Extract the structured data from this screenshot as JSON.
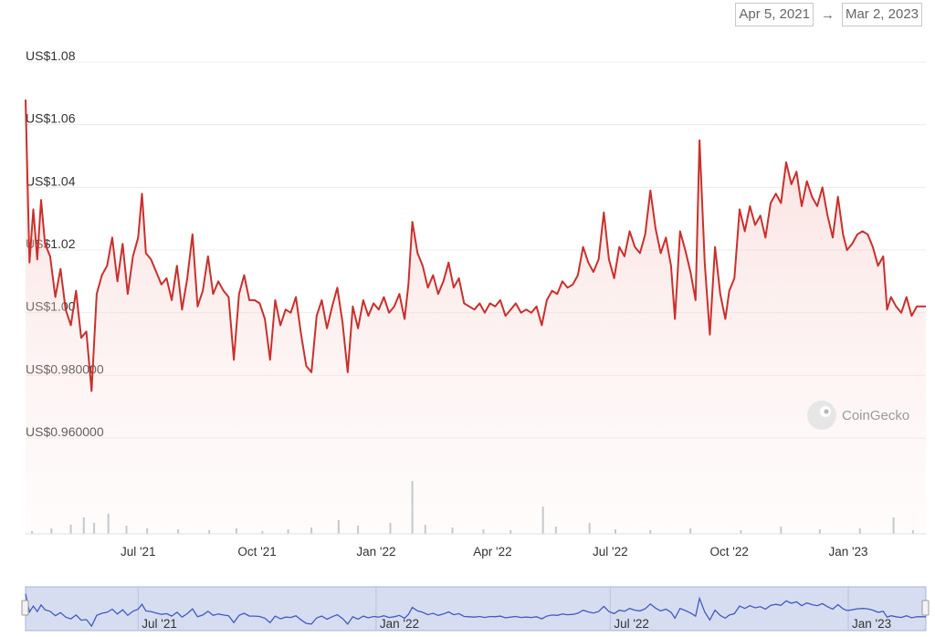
{
  "header": {
    "date_from": "Apr 5, 2021",
    "date_arrow": "→",
    "date_to": "Mar 2, 2023"
  },
  "watermark": {
    "text": "CoinGecko",
    "icon": "gecko-logo-icon"
  },
  "colors": {
    "line": "#c9302c",
    "fill": "#f6d2d0",
    "volume": "#c4c8cc",
    "navigator_bg": "#d7ddf0",
    "navigator_line": "#3f5cc2"
  },
  "chart_data": {
    "type": "line",
    "x_start": "2021-04-05",
    "x_end": "2023-03-02",
    "ylim": [
      0.95,
      1.085
    ],
    "y_ticks": [
      {
        "value": 1.08,
        "label": "US$1.08"
      },
      {
        "value": 1.06,
        "label": "US$1.06"
      },
      {
        "value": 1.04,
        "label": "US$1.04"
      },
      {
        "value": 1.02,
        "label": "US$1.02"
      },
      {
        "value": 1.0,
        "label": "US$1.00"
      },
      {
        "value": 0.98,
        "label": "US$0.980000"
      },
      {
        "value": 0.96,
        "label": "US$0.960000"
      }
    ],
    "x_ticks": [
      {
        "date": "2021-07-01",
        "label": "Jul '21"
      },
      {
        "date": "2021-10-01",
        "label": "Oct '21"
      },
      {
        "date": "2022-01-01",
        "label": "Jan '22"
      },
      {
        "date": "2022-04-01",
        "label": "Apr '22"
      },
      {
        "date": "2022-07-01",
        "label": "Jul '22"
      },
      {
        "date": "2022-10-01",
        "label": "Oct '22"
      },
      {
        "date": "2023-01-01",
        "label": "Jan '23"
      }
    ],
    "navigator_ticks": [
      {
        "date": "2021-07-01",
        "label": "Jul '21"
      },
      {
        "date": "2022-01-01",
        "label": "Jan '22"
      },
      {
        "date": "2022-07-01",
        "label": "Jul '22"
      },
      {
        "date": "2023-01-01",
        "label": "Jan '23"
      }
    ],
    "series": [
      {
        "values": [
          [
            "2021-04-05",
            1.068
          ],
          [
            "2021-04-08",
            1.016
          ],
          [
            "2021-04-11",
            1.033
          ],
          [
            "2021-04-14",
            1.017
          ],
          [
            "2021-04-17",
            1.036
          ],
          [
            "2021-04-20",
            1.022
          ],
          [
            "2021-04-24",
            1.018
          ],
          [
            "2021-04-28",
            1.005
          ],
          [
            "2021-05-02",
            1.014
          ],
          [
            "2021-05-06",
            1.001
          ],
          [
            "2021-05-10",
            0.996
          ],
          [
            "2021-05-14",
            1.007
          ],
          [
            "2021-05-18",
            0.992
          ],
          [
            "2021-05-22",
            0.994
          ],
          [
            "2021-05-26",
            0.975
          ],
          [
            "2021-05-30",
            1.006
          ],
          [
            "2021-06-03",
            1.012
          ],
          [
            "2021-06-07",
            1.015
          ],
          [
            "2021-06-11",
            1.024
          ],
          [
            "2021-06-15",
            1.01
          ],
          [
            "2021-06-19",
            1.022
          ],
          [
            "2021-06-23",
            1.006
          ],
          [
            "2021-06-27",
            1.018
          ],
          [
            "2021-07-01",
            1.024
          ],
          [
            "2021-07-04",
            1.038
          ],
          [
            "2021-07-07",
            1.019
          ],
          [
            "2021-07-11",
            1.017
          ],
          [
            "2021-07-15",
            1.013
          ],
          [
            "2021-07-19",
            1.009
          ],
          [
            "2021-07-23",
            1.011
          ],
          [
            "2021-07-27",
            1.004
          ],
          [
            "2021-07-31",
            1.015
          ],
          [
            "2021-08-04",
            1.001
          ],
          [
            "2021-08-08",
            1.011
          ],
          [
            "2021-08-12",
            1.025
          ],
          [
            "2021-08-16",
            1.002
          ],
          [
            "2021-08-20",
            1.007
          ],
          [
            "2021-08-24",
            1.018
          ],
          [
            "2021-08-28",
            1.006
          ],
          [
            "2021-09-01",
            1.01
          ],
          [
            "2021-09-05",
            1.007
          ],
          [
            "2021-09-09",
            1.005
          ],
          [
            "2021-09-13",
            0.985
          ],
          [
            "2021-09-17",
            1.006
          ],
          [
            "2021-09-21",
            1.012
          ],
          [
            "2021-09-25",
            1.004
          ],
          [
            "2021-09-29",
            1.004
          ],
          [
            "2021-10-03",
            1.003
          ],
          [
            "2021-10-07",
            0.998
          ],
          [
            "2021-10-11",
            0.985
          ],
          [
            "2021-10-15",
            1.004
          ],
          [
            "2021-10-19",
            0.996
          ],
          [
            "2021-10-23",
            1.001
          ],
          [
            "2021-10-27",
            1.0
          ],
          [
            "2021-10-31",
            1.005
          ],
          [
            "2021-11-04",
            0.993
          ],
          [
            "2021-11-08",
            0.983
          ],
          [
            "2021-11-12",
            0.981
          ],
          [
            "2021-11-16",
            0.999
          ],
          [
            "2021-11-20",
            1.004
          ],
          [
            "2021-11-24",
            0.995
          ],
          [
            "2021-11-28",
            1.002
          ],
          [
            "2021-12-02",
            1.008
          ],
          [
            "2021-12-06",
            0.997
          ],
          [
            "2021-12-10",
            0.981
          ],
          [
            "2021-12-14",
            1.002
          ],
          [
            "2021-12-18",
            0.995
          ],
          [
            "2021-12-22",
            1.004
          ],
          [
            "2021-12-26",
            0.999
          ],
          [
            "2021-12-30",
            1.003
          ],
          [
            "2022-01-03",
            1.001
          ],
          [
            "2022-01-07",
            1.005
          ],
          [
            "2022-01-11",
            1.0
          ],
          [
            "2022-01-15",
            1.002
          ],
          [
            "2022-01-19",
            1.006
          ],
          [
            "2022-01-23",
            0.998
          ],
          [
            "2022-01-26",
            1.009
          ],
          [
            "2022-01-29",
            1.029
          ],
          [
            "2022-02-02",
            1.019
          ],
          [
            "2022-02-06",
            1.015
          ],
          [
            "2022-02-10",
            1.008
          ],
          [
            "2022-02-14",
            1.012
          ],
          [
            "2022-02-18",
            1.006
          ],
          [
            "2022-02-22",
            1.01
          ],
          [
            "2022-02-26",
            1.016
          ],
          [
            "2022-03-02",
            1.008
          ],
          [
            "2022-03-06",
            1.011
          ],
          [
            "2022-03-10",
            1.003
          ],
          [
            "2022-03-14",
            1.002
          ],
          [
            "2022-03-18",
            1.001
          ],
          [
            "2022-03-22",
            1.003
          ],
          [
            "2022-03-26",
            1.0
          ],
          [
            "2022-03-30",
            1.003
          ],
          [
            "2022-04-03",
            1.002
          ],
          [
            "2022-04-07",
            1.004
          ],
          [
            "2022-04-11",
            0.999
          ],
          [
            "2022-04-15",
            1.001
          ],
          [
            "2022-04-19",
            1.003
          ],
          [
            "2022-04-23",
            1.0
          ],
          [
            "2022-04-27",
            1.001
          ],
          [
            "2022-05-01",
            1.0
          ],
          [
            "2022-05-05",
            1.002
          ],
          [
            "2022-05-09",
            0.996
          ],
          [
            "2022-05-13",
            1.004
          ],
          [
            "2022-05-17",
            1.007
          ],
          [
            "2022-05-21",
            1.006
          ],
          [
            "2022-05-25",
            1.01
          ],
          [
            "2022-05-29",
            1.008
          ],
          [
            "2022-06-02",
            1.009
          ],
          [
            "2022-06-06",
            1.012
          ],
          [
            "2022-06-10",
            1.021
          ],
          [
            "2022-06-14",
            1.016
          ],
          [
            "2022-06-18",
            1.013
          ],
          [
            "2022-06-22",
            1.017
          ],
          [
            "2022-06-26",
            1.032
          ],
          [
            "2022-06-30",
            1.017
          ],
          [
            "2022-07-04",
            1.011
          ],
          [
            "2022-07-08",
            1.021
          ],
          [
            "2022-07-12",
            1.018
          ],
          [
            "2022-07-16",
            1.026
          ],
          [
            "2022-07-20",
            1.021
          ],
          [
            "2022-07-24",
            1.019
          ],
          [
            "2022-07-28",
            1.025
          ],
          [
            "2022-08-01",
            1.039
          ],
          [
            "2022-08-05",
            1.027
          ],
          [
            "2022-08-09",
            1.019
          ],
          [
            "2022-08-13",
            1.024
          ],
          [
            "2022-08-17",
            1.015
          ],
          [
            "2022-08-20",
            0.998
          ],
          [
            "2022-08-24",
            1.026
          ],
          [
            "2022-08-28",
            1.02
          ],
          [
            "2022-09-01",
            1.013
          ],
          [
            "2022-09-05",
            1.004
          ],
          [
            "2022-09-08",
            1.055
          ],
          [
            "2022-09-12",
            1.016
          ],
          [
            "2022-09-16",
            0.993
          ],
          [
            "2022-09-20",
            1.021
          ],
          [
            "2022-09-24",
            1.006
          ],
          [
            "2022-09-28",
            0.998
          ],
          [
            "2022-10-01",
            1.007
          ],
          [
            "2022-10-05",
            1.011
          ],
          [
            "2022-10-09",
            1.033
          ],
          [
            "2022-10-13",
            1.026
          ],
          [
            "2022-10-17",
            1.034
          ],
          [
            "2022-10-21",
            1.028
          ],
          [
            "2022-10-25",
            1.031
          ],
          [
            "2022-10-29",
            1.024
          ],
          [
            "2022-11-02",
            1.035
          ],
          [
            "2022-11-06",
            1.038
          ],
          [
            "2022-11-10",
            1.035
          ],
          [
            "2022-11-14",
            1.048
          ],
          [
            "2022-11-18",
            1.041
          ],
          [
            "2022-11-22",
            1.045
          ],
          [
            "2022-11-26",
            1.034
          ],
          [
            "2022-11-30",
            1.042
          ],
          [
            "2022-12-04",
            1.037
          ],
          [
            "2022-12-08",
            1.034
          ],
          [
            "2022-12-12",
            1.04
          ],
          [
            "2022-12-16",
            1.031
          ],
          [
            "2022-12-20",
            1.024
          ],
          [
            "2022-12-24",
            1.037
          ],
          [
            "2022-12-28",
            1.025
          ],
          [
            "2022-12-31",
            1.02
          ],
          [
            "2023-01-04",
            1.022
          ],
          [
            "2023-01-08",
            1.025
          ],
          [
            "2023-01-12",
            1.026
          ],
          [
            "2023-01-16",
            1.025
          ],
          [
            "2023-01-20",
            1.021
          ],
          [
            "2023-01-24",
            1.015
          ],
          [
            "2023-01-28",
            1.018
          ],
          [
            "2023-01-31",
            1.001
          ],
          [
            "2023-02-03",
            1.005
          ],
          [
            "2023-02-07",
            1.002
          ],
          [
            "2023-02-11",
            1.0
          ],
          [
            "2023-02-15",
            1.005
          ],
          [
            "2023-02-19",
            0.999
          ],
          [
            "2023-02-23",
            1.002
          ],
          [
            "2023-02-27",
            1.002
          ],
          [
            "2023-03-02",
            1.002
          ]
        ]
      }
    ],
    "volume": [
      [
        "2021-04-10",
        3
      ],
      [
        "2021-04-25",
        6
      ],
      [
        "2021-05-10",
        10
      ],
      [
        "2021-05-20",
        18
      ],
      [
        "2021-05-28",
        12
      ],
      [
        "2021-06-08",
        22
      ],
      [
        "2021-06-22",
        9
      ],
      [
        "2021-07-08",
        6
      ],
      [
        "2021-08-01",
        5
      ],
      [
        "2021-08-25",
        4
      ],
      [
        "2021-09-15",
        6
      ],
      [
        "2021-10-05",
        3
      ],
      [
        "2021-10-25",
        5
      ],
      [
        "2021-11-12",
        7
      ],
      [
        "2021-12-03",
        15
      ],
      [
        "2021-12-18",
        9
      ],
      [
        "2022-01-12",
        12
      ],
      [
        "2022-01-29",
        58
      ],
      [
        "2022-02-08",
        10
      ],
      [
        "2022-03-01",
        7
      ],
      [
        "2022-03-25",
        5
      ],
      [
        "2022-04-15",
        4
      ],
      [
        "2022-05-10",
        30
      ],
      [
        "2022-05-20",
        8
      ],
      [
        "2022-06-15",
        12
      ],
      [
        "2022-07-05",
        5
      ],
      [
        "2022-08-01",
        4
      ],
      [
        "2022-09-01",
        6
      ],
      [
        "2022-10-10",
        4
      ],
      [
        "2022-11-10",
        8
      ],
      [
        "2022-12-10",
        5
      ],
      [
        "2023-01-10",
        6
      ],
      [
        "2023-02-05",
        18
      ],
      [
        "2023-02-20",
        4
      ]
    ]
  }
}
